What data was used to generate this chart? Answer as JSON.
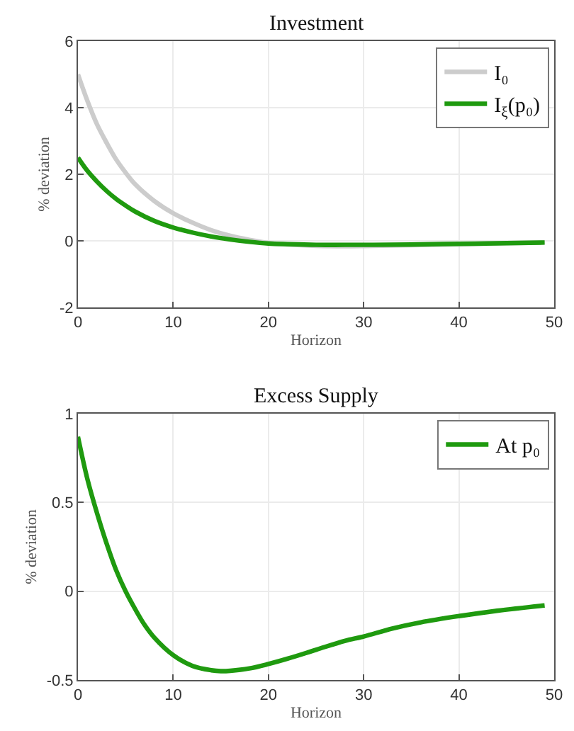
{
  "chart_data": [
    {
      "type": "line",
      "title": "Investment",
      "xlabel": "Horizon",
      "ylabel": "% deviation",
      "xlim": [
        0,
        50
      ],
      "ylim": [
        -2,
        6
      ],
      "xticks": [
        0,
        10,
        20,
        30,
        40,
        50
      ],
      "yticks": [
        -2,
        0,
        2,
        4,
        6
      ],
      "grid": true,
      "legend": "top right",
      "series": [
        {
          "name": "I₀",
          "color": "#cccccc",
          "x": [
            0,
            1,
            2,
            3,
            4,
            5,
            6,
            8,
            10,
            12,
            14,
            16,
            18,
            20,
            22,
            25,
            28,
            31,
            35,
            40,
            45,
            49
          ],
          "values": [
            5.0,
            4.2,
            3.5,
            2.95,
            2.45,
            2.05,
            1.7,
            1.2,
            0.83,
            0.55,
            0.32,
            0.15,
            0.03,
            -0.06,
            -0.11,
            -0.15,
            -0.16,
            -0.15,
            -0.13,
            -0.1,
            -0.07,
            -0.05
          ]
        },
        {
          "name": "I$_{ξ}$(p₀)",
          "color": "#1f9a0f",
          "x": [
            0,
            1,
            2,
            3,
            4,
            5,
            6,
            8,
            10,
            12,
            14,
            16,
            18,
            20,
            22,
            25,
            28,
            31,
            35,
            40,
            45,
            49
          ],
          "values": [
            2.5,
            2.1,
            1.78,
            1.5,
            1.26,
            1.06,
            0.88,
            0.6,
            0.4,
            0.25,
            0.13,
            0.04,
            -0.03,
            -0.08,
            -0.1,
            -0.12,
            -0.12,
            -0.12,
            -0.11,
            -0.09,
            -0.07,
            -0.05
          ]
        }
      ]
    },
    {
      "type": "line",
      "title": "Excess Supply",
      "xlabel": "Horizon",
      "ylabel": "% deviation",
      "xlim": [
        0,
        50
      ],
      "ylim": [
        -0.5,
        1
      ],
      "xticks": [
        0,
        10,
        20,
        30,
        40,
        50
      ],
      "yticks": [
        -0.5,
        0,
        0.5,
        1
      ],
      "grid": true,
      "legend": "top right",
      "series": [
        {
          "name": "At p₀",
          "color": "#1f9a0f",
          "x": [
            0,
            1,
            2,
            3,
            4,
            5,
            6,
            7,
            8,
            10,
            12,
            14,
            15,
            16,
            18,
            20,
            22,
            25,
            28,
            30,
            33,
            36,
            40,
            44,
            49
          ],
          "values": [
            0.87,
            0.63,
            0.44,
            0.27,
            0.12,
            0.0,
            -0.1,
            -0.19,
            -0.26,
            -0.36,
            -0.42,
            -0.445,
            -0.45,
            -0.448,
            -0.435,
            -0.41,
            -0.38,
            -0.33,
            -0.28,
            -0.255,
            -0.21,
            -0.175,
            -0.14,
            -0.11,
            -0.08
          ]
        }
      ]
    }
  ]
}
